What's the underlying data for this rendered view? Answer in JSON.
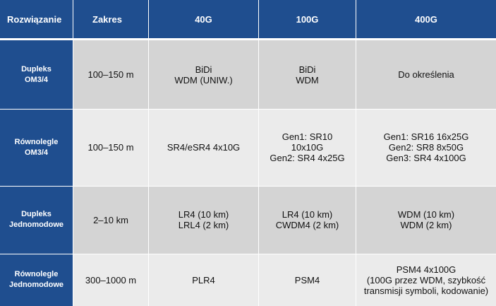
{
  "header": {
    "col0": "Rozwiązanie",
    "col1": "Zakres",
    "col2": "40G",
    "col3": "100G",
    "col4": "400G"
  },
  "rows": [
    {
      "label": [
        "Dupleks",
        "OM3/4"
      ],
      "range": "100–150  m",
      "g40": [
        "BiDi",
        "WDM (UNIW.)"
      ],
      "g100": [
        "BiDi",
        "WDM"
      ],
      "g400": [
        "Do określenia"
      ]
    },
    {
      "label": [
        "Równolegle",
        "OM3/4"
      ],
      "range": "100–150  m",
      "g40": [
        "SR4/eSR4  4x10G"
      ],
      "g100": [
        "Gen1:  SR10",
        "10x10G",
        "Gen2:  SR4  4x25G"
      ],
      "g400": [
        "Gen1:  SR16  16x25G",
        "Gen2:  SR8  8x50G",
        "Gen3:  SR4  4x100G"
      ]
    },
    {
      "label": [
        "Dupleks",
        "Jednomodowe"
      ],
      "range": "2–10  km",
      "g40": [
        "LR4  (10  km)",
        "LRL4  (2  km)"
      ],
      "g100": [
        "LR4  (10  km)",
        "CWDM4  (2  km)"
      ],
      "g400": [
        "WDM  (10  km)",
        "WDM  (2  km)"
      ]
    },
    {
      "label": [
        "Równolegle",
        "Jednomodowe"
      ],
      "range": "300–1000  m",
      "g40": [
        "PLR4"
      ],
      "g100": [
        "PSM4"
      ],
      "g400": [
        "PSM4  4x100G",
        "(100G  przez  WDM,  szybkość",
        "transmisji  symboli,  kodowanie)"
      ]
    }
  ],
  "colors": {
    "header_bg": "#1f4e8f",
    "cell_dark": "#d4d4d4",
    "cell_light": "#ebebeb"
  }
}
